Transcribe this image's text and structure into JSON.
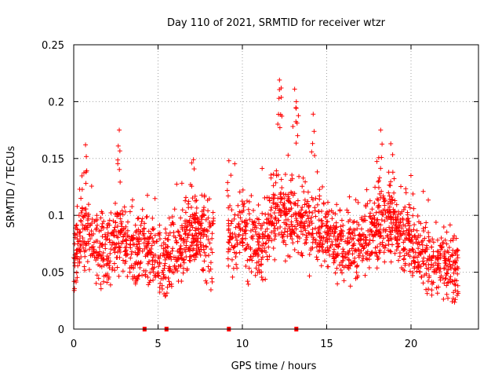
{
  "chart_data": {
    "type": "scatter",
    "title": "Day 110 of 2021, SRMTID for receiver wtzr",
    "xlabel": "GPS time / hours",
    "ylabel": "SRMTID / TECUs",
    "xlim": [
      0,
      24
    ],
    "ylim": [
      0,
      0.25
    ],
    "xticks": [
      0,
      5,
      10,
      15,
      20
    ],
    "yticks": [
      0,
      0.05,
      0.1,
      0.15,
      0.2,
      0.25
    ],
    "xtick_labels": [
      "0",
      "5",
      "10",
      "15",
      "20"
    ],
    "ytick_labels": [
      "0",
      "0.05",
      "0.1",
      "0.15",
      "0.2",
      "0.25"
    ],
    "grid": true,
    "marker": "+",
    "color": "#ff0000",
    "series_name": "wtzr",
    "data_gap_markers_x": [
      4.2,
      5.5,
      9.2,
      13.2
    ],
    "x_end": 22.8,
    "activity_envelope": [
      {
        "x": 0,
        "center": 0.065
      },
      {
        "x": 0.5,
        "center": 0.09
      },
      {
        "x": 1,
        "center": 0.075
      },
      {
        "x": 2,
        "center": 0.065
      },
      {
        "x": 2.6,
        "center": 0.085
      },
      {
        "x": 3.5,
        "center": 0.07
      },
      {
        "x": 4.2,
        "center": 0.075
      },
      {
        "x": 5,
        "center": 0.055
      },
      {
        "x": 6,
        "center": 0.07
      },
      {
        "x": 7,
        "center": 0.085
      },
      {
        "x": 8.2,
        "center": 0.08
      },
      {
        "x": 9.2,
        "center": 0.08
      },
      {
        "x": 10,
        "center": 0.085
      },
      {
        "x": 11,
        "center": 0.07
      },
      {
        "x": 12,
        "center": 0.1
      },
      {
        "x": 13,
        "center": 0.1
      },
      {
        "x": 14,
        "center": 0.095
      },
      {
        "x": 15,
        "center": 0.085
      },
      {
        "x": 16,
        "center": 0.07
      },
      {
        "x": 17,
        "center": 0.075
      },
      {
        "x": 18,
        "center": 0.095
      },
      {
        "x": 19,
        "center": 0.09
      },
      {
        "x": 20,
        "center": 0.08
      },
      {
        "x": 21,
        "center": 0.065
      },
      {
        "x": 22,
        "center": 0.055
      },
      {
        "x": 22.8,
        "center": 0.055
      }
    ],
    "notable_peaks": [
      {
        "x": 2.7,
        "y": 0.175
      },
      {
        "x": 0.7,
        "y": 0.162
      },
      {
        "x": 7.1,
        "y": 0.149
      },
      {
        "x": 9.2,
        "y": 0.148
      },
      {
        "x": 12.2,
        "y": 0.219
      },
      {
        "x": 12.3,
        "y": 0.212
      },
      {
        "x": 13.1,
        "y": 0.211
      },
      {
        "x": 13.2,
        "y": 0.2
      },
      {
        "x": 14.2,
        "y": 0.189
      },
      {
        "x": 18.2,
        "y": 0.175
      },
      {
        "x": 18.8,
        "y": 0.163
      }
    ]
  }
}
